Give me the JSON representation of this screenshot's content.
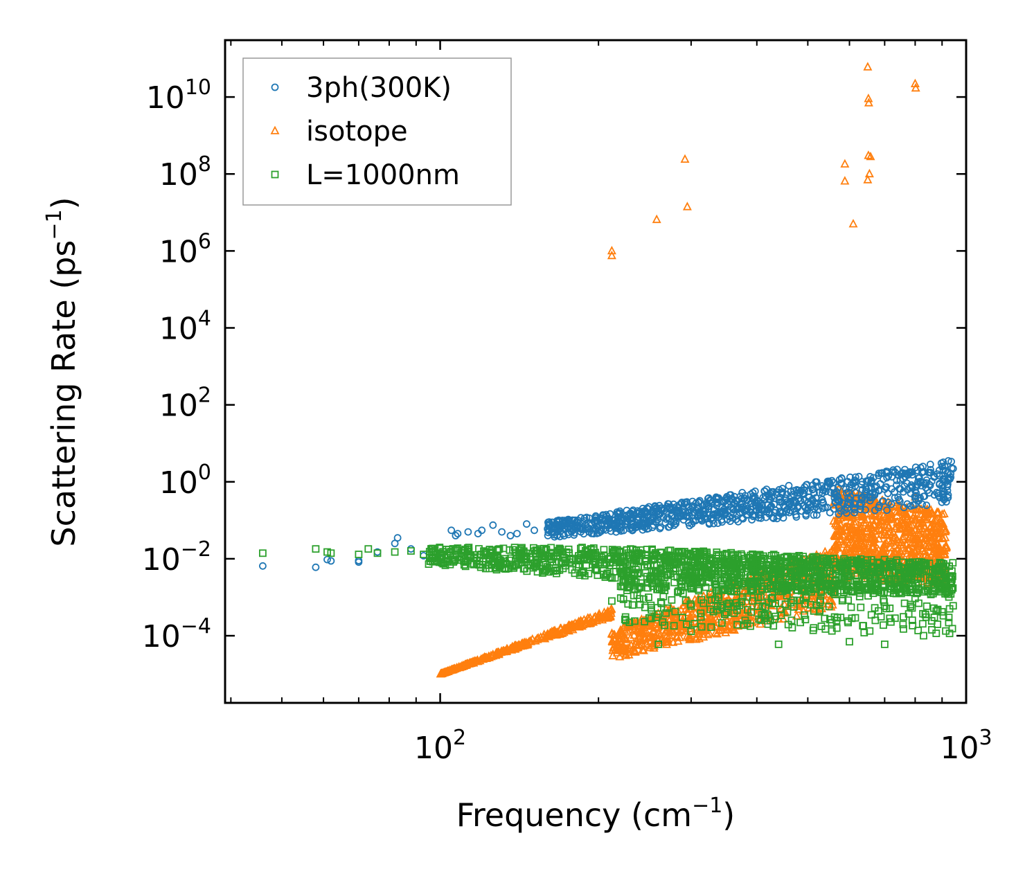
{
  "chart_data": {
    "type": "scatter",
    "title": "",
    "xlabel": {
      "base": "Frequency (cm",
      "sup": "−1",
      "suffix": ")"
    },
    "ylabel": {
      "base": "Scattering Rate (ps",
      "sup": "−1",
      "suffix": ")"
    },
    "xscale": "log",
    "yscale": "log",
    "xlim": [
      39,
      1000
    ],
    "ylim": [
      1.8e-06,
      300000000000
    ],
    "grid": false,
    "legend_position": "top-left",
    "x_ticks": [
      {
        "value": 100,
        "base": "10",
        "exp": "2"
      },
      {
        "value": 1000,
        "base": "10",
        "exp": "3"
      }
    ],
    "y_ticks": [
      {
        "value": 0.0001,
        "base": "10",
        "exp": "−4"
      },
      {
        "value": 0.01,
        "base": "10",
        "exp": "−2"
      },
      {
        "value": 1,
        "base": "10",
        "exp": "0"
      },
      {
        "value": 100,
        "base": "10",
        "exp": "2"
      },
      {
        "value": 10000,
        "base": "10",
        "exp": "4"
      },
      {
        "value": 1000000,
        "base": "10",
        "exp": "6"
      },
      {
        "value": 100000000,
        "base": "10",
        "exp": "8"
      },
      {
        "value": 10000000000,
        "base": "10",
        "exp": "10"
      }
    ],
    "series": [
      {
        "name": "3ph(300K)",
        "marker": "circle",
        "color": "#1f77b4",
        "points": [
          [
            46,
            0.0065
          ],
          [
            58,
            0.006
          ],
          [
            61,
            0.0095
          ],
          [
            62,
            0.0088
          ],
          [
            70,
            0.0082
          ],
          [
            70,
            0.009
          ],
          [
            76,
            0.015
          ],
          [
            82,
            0.025
          ],
          [
            83,
            0.035
          ],
          [
            88,
            0.018
          ],
          [
            93,
            0.012
          ],
          [
            100,
            0.01
          ],
          [
            105,
            0.055
          ],
          [
            107,
            0.04
          ],
          [
            108,
            0.045
          ],
          [
            113,
            0.05
          ],
          [
            118,
            0.045
          ],
          [
            120,
            0.055
          ],
          [
            126,
            0.075
          ],
          [
            131,
            0.05
          ],
          [
            136,
            0.04
          ],
          [
            140,
            0.045
          ],
          [
            146,
            0.08
          ],
          [
            151,
            0.055
          ],
          [
            160,
            0.06
          ],
          [
            168,
            0.1
          ],
          [
            174,
            0.09
          ],
          [
            182,
            0.07
          ],
          [
            195,
            0.06
          ],
          [
            208,
            0.08
          ],
          [
            222,
            0.1
          ],
          [
            238,
            0.1
          ],
          [
            255,
            0.12
          ],
          [
            272,
            0.11
          ],
          [
            290,
            0.13
          ],
          [
            310,
            0.16
          ],
          [
            330,
            0.14
          ],
          [
            352,
            0.18
          ],
          [
            375,
            0.2
          ],
          [
            400,
            0.18
          ],
          [
            425,
            0.22
          ],
          [
            450,
            0.24
          ],
          [
            478,
            0.21
          ],
          [
            505,
            0.26
          ],
          [
            535,
            0.28
          ],
          [
            565,
            0.3
          ],
          [
            600,
            0.35
          ],
          [
            635,
            0.4
          ],
          [
            670,
            0.45
          ],
          [
            710,
            0.5
          ],
          [
            750,
            0.65
          ],
          [
            790,
            0.75
          ],
          [
            830,
            0.95
          ],
          [
            870,
            1.4
          ],
          [
            900,
            2.5
          ],
          [
            925,
            3.5
          ],
          [
            945,
            2.2
          ]
        ],
        "bands": [
          {
            "x_from": 160,
            "x_to": 940,
            "y_from": [
              0.035,
              0.09
            ],
            "y_to": [
              0.25,
              3.5
            ],
            "count": 900
          }
        ]
      },
      {
        "name": "isotope",
        "marker": "triangle",
        "color": "#ff7f0e",
        "points": [
          [
            212,
            1000000
          ],
          [
            212,
            750000
          ],
          [
            258,
            6500000
          ],
          [
            292,
            240000000
          ],
          [
            295,
            14000000
          ],
          [
            588,
            180000000
          ],
          [
            588,
            65000000
          ],
          [
            610,
            5000000
          ],
          [
            650,
            60000000000
          ],
          [
            652,
            9000000000
          ],
          [
            653,
            7000000000
          ],
          [
            652,
            300000000
          ],
          [
            655,
            100000000
          ],
          [
            650,
            70000000
          ],
          [
            658,
            280000000
          ],
          [
            800,
            22000000000
          ],
          [
            802,
            17000000000
          ],
          [
            800,
            0.4
          ]
        ],
        "bands": [
          {
            "x_from": 100,
            "x_to": 212,
            "y_from": [
              1e-05,
              1e-05
            ],
            "y_to": [
              0.0003,
              0.0005
            ],
            "count": 320
          },
          {
            "x_from": 212,
            "x_to": 560,
            "y_from": [
              2.5e-05,
              0.00015
            ],
            "y_to": [
              0.0005,
              0.02
            ],
            "count": 700
          },
          {
            "x_from": 560,
            "x_to": 920,
            "y_from": [
              0.003,
              0.7
            ],
            "y_to": [
              0.002,
              0.15
            ],
            "count": 800
          }
        ]
      },
      {
        "name": "L=1000nm",
        "marker": "square",
        "color": "#2ca02c",
        "points": [
          [
            46,
            0.014
          ],
          [
            58,
            0.018
          ],
          [
            61,
            0.015
          ],
          [
            62,
            0.014
          ],
          [
            70,
            0.013
          ],
          [
            73,
            0.018
          ],
          [
            76,
            0.014
          ],
          [
            82,
            0.015
          ],
          [
            88,
            0.016
          ],
          [
            93,
            0.013
          ],
          [
            212,
            0.0008
          ],
          [
            258,
            0.0003
          ],
          [
            260,
            6e-05
          ],
          [
            300,
            0.00013
          ],
          [
            350,
            0.0004
          ],
          [
            380,
            0.00025
          ],
          [
            420,
            0.0002
          ],
          [
            440,
            6e-05
          ],
          [
            540,
            0.00015
          ],
          [
            600,
            7e-05
          ],
          [
            640,
            0.00012
          ],
          [
            700,
            6e-05
          ],
          [
            760,
            0.00015
          ],
          [
            830,
            0.0001
          ],
          [
            870,
            0.0003
          ],
          [
            930,
            0.0005
          ],
          [
            945,
            0.0006
          ]
        ],
        "bands": [
          {
            "x_from": 95,
            "x_to": 220,
            "y_from": [
              0.007,
              0.02
            ],
            "y_to": [
              0.003,
              0.02
            ],
            "count": 350
          },
          {
            "x_from": 220,
            "x_to": 945,
            "y_from": [
              0.0015,
              0.02
            ],
            "y_to": [
              0.0012,
              0.008
            ],
            "count": 1100
          },
          {
            "x_from": 220,
            "x_to": 945,
            "y_from": [
              0.0002,
              0.002
            ],
            "y_to": [
              0.0001,
              0.002
            ],
            "count": 250
          }
        ]
      }
    ]
  }
}
